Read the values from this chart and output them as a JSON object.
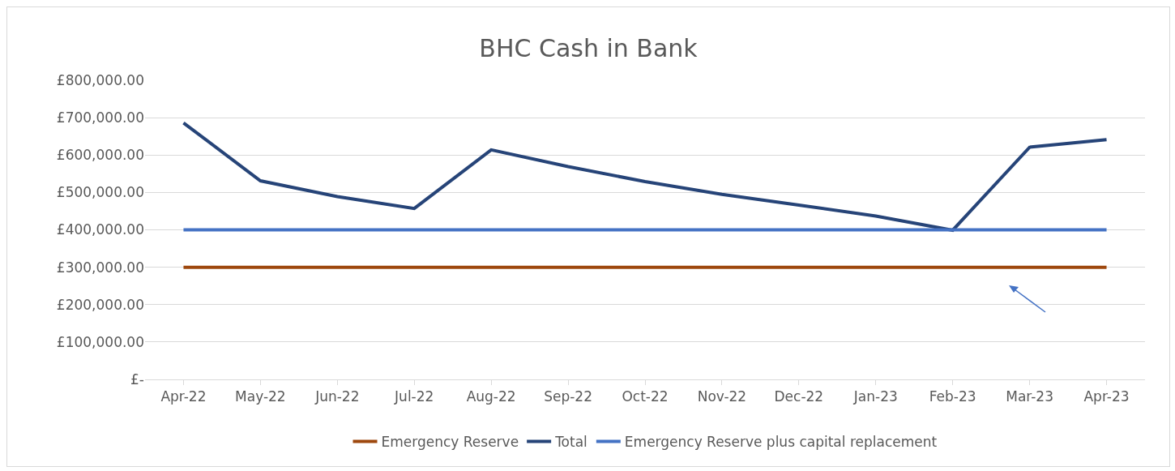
{
  "chart_data": {
    "type": "line",
    "title": "BHC Cash in Bank",
    "categories": [
      "Apr-22",
      "May-22",
      "Jun-22",
      "Jul-22",
      "Aug-22",
      "Sep-22",
      "Oct-22",
      "Nov-22",
      "Dec-22",
      "Jan-23",
      "Feb-23",
      "Mar-23",
      "Apr-23"
    ],
    "series": [
      {
        "name": "Emergency Reserve",
        "color": "#9e480e",
        "values": [
          300000,
          300000,
          300000,
          300000,
          300000,
          300000,
          300000,
          300000,
          300000,
          300000,
          300000,
          300000,
          300000
        ]
      },
      {
        "name": "Total",
        "color": "#264478",
        "values": [
          686000,
          531000,
          489000,
          457000,
          614000,
          569000,
          529000,
          495000,
          466000,
          437000,
          399000,
          621000,
          641000
        ]
      },
      {
        "name": "Emergency Reserve plus capital replacement",
        "color": "#4472c4",
        "values": [
          400000,
          400000,
          400000,
          400000,
          400000,
          400000,
          400000,
          400000,
          400000,
          400000,
          400000,
          400000,
          400000
        ]
      }
    ],
    "ylim": [
      0,
      800000
    ],
    "yticks": [
      {
        "value": 0,
        "label": "£-"
      },
      {
        "value": 100000,
        "label": "£100,000.00"
      },
      {
        "value": 200000,
        "label": "£200,000.00"
      },
      {
        "value": 300000,
        "label": "£300,000.00"
      },
      {
        "value": 400000,
        "label": "£400,000.00"
      },
      {
        "value": 500000,
        "label": "£500,000.00"
      },
      {
        "value": 600000,
        "label": "£600,000.00"
      },
      {
        "value": 700000,
        "label": "£700,000.00"
      },
      {
        "value": 800000,
        "label": "£800,000.00"
      }
    ],
    "grid": "y",
    "legend": "bottom",
    "marker": "none",
    "line_style": "solid"
  }
}
